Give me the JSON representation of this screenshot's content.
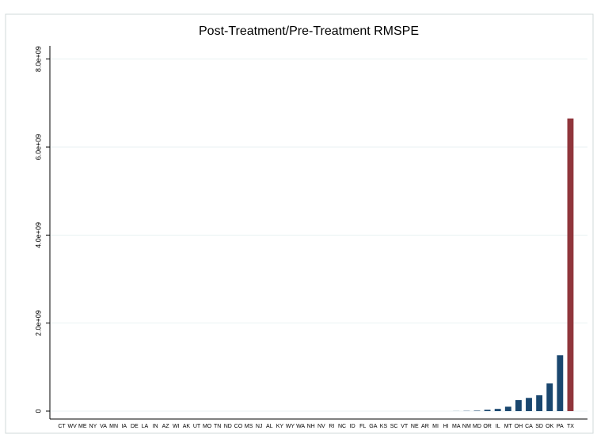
{
  "chart_data": {
    "type": "bar",
    "title": "Post-Treatment/Pre-Treatment RMSPE",
    "categories": [
      "CT",
      "WV",
      "ME",
      "NY",
      "VA",
      "MN",
      "IA",
      "DE",
      "LA",
      "IN",
      "AZ",
      "WI",
      "AK",
      "UT",
      "MO",
      "TN",
      "ND",
      "CO",
      "MS",
      "NJ",
      "AL",
      "KY",
      "WY",
      "WA",
      "NH",
      "NV",
      "RI",
      "NC",
      "ID",
      "FL",
      "GA",
      "KS",
      "SC",
      "VT",
      "NE",
      "AR",
      "MI",
      "HI",
      "MA",
      "NM",
      "MD",
      "OR",
      "IL",
      "MT",
      "OH",
      "CA",
      "SD",
      "OK",
      "PA",
      "TX"
    ],
    "values": [
      0,
      0,
      0,
      0,
      0,
      0,
      0,
      0,
      0,
      0,
      0,
      0,
      0,
      0,
      0,
      0,
      0,
      0,
      0,
      0,
      0,
      0,
      0,
      0,
      0,
      0,
      0,
      0,
      0,
      0,
      0,
      0,
      0,
      0,
      0,
      0,
      0,
      0,
      2000000,
      5000000,
      10000000,
      30000000,
      50000000,
      100000000,
      250000000,
      300000000,
      360000000,
      630000000,
      1270000000,
      6650000000
    ],
    "colors": [
      "#1a476f",
      "#1a476f",
      "#1a476f",
      "#1a476f",
      "#1a476f",
      "#1a476f",
      "#1a476f",
      "#1a476f",
      "#1a476f",
      "#1a476f",
      "#1a476f",
      "#1a476f",
      "#1a476f",
      "#1a476f",
      "#1a476f",
      "#1a476f",
      "#1a476f",
      "#1a476f",
      "#1a476f",
      "#1a476f",
      "#1a476f",
      "#1a476f",
      "#1a476f",
      "#1a476f",
      "#1a476f",
      "#1a476f",
      "#1a476f",
      "#1a476f",
      "#1a476f",
      "#1a476f",
      "#1a476f",
      "#1a476f",
      "#1a476f",
      "#1a476f",
      "#1a476f",
      "#1a476f",
      "#1a476f",
      "#1a476f",
      "#1a476f",
      "#1a476f",
      "#1a476f",
      "#1a476f",
      "#1a476f",
      "#1a476f",
      "#1a476f",
      "#1a476f",
      "#1a476f",
      "#1a476f",
      "#1a476f",
      "#90353b"
    ],
    "ylim": [
      -180000000,
      8300000000
    ],
    "yticks": [
      {
        "value": 0,
        "label": "0"
      },
      {
        "value": 2000000000,
        "label": "2.0e+09"
      },
      {
        "value": 4000000000,
        "label": "4.0e+09"
      },
      {
        "value": 6000000000,
        "label": "6.0e+09"
      },
      {
        "value": 8000000000,
        "label": "8.0e+09"
      }
    ],
    "grid": true
  }
}
